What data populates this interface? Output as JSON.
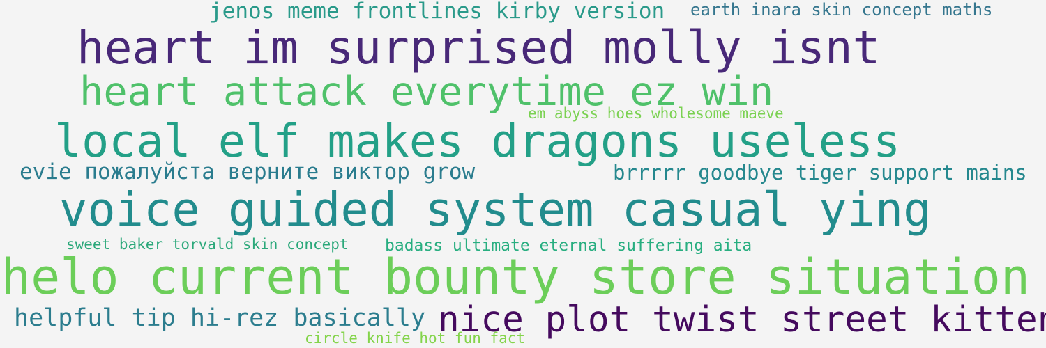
{
  "word_cloud": {
    "phrases": [
      {
        "text": "jenos meme frontlines kirby version",
        "color": "#2a9a8a"
      },
      {
        "text": "earth inara skin concept maths",
        "color": "#35768e"
      },
      {
        "text": "heart im surprised molly isnt",
        "color": "#482878"
      },
      {
        "text": "heart attack everytime ez win",
        "color": "#4fc16a"
      },
      {
        "text": "em abyss hoes wholesome maeve",
        "color": "#7ad151"
      },
      {
        "text": "local elf makes dragons useless",
        "color": "#23a087"
      },
      {
        "text": "evie пожалуйста верните виктор grow",
        "color": "#2a7c8e"
      },
      {
        "text": "brrrrr goodbye tiger support mains",
        "color": "#25888e"
      },
      {
        "text": "voice guided system casual ying",
        "color": "#228c8d"
      },
      {
        "text": "sweet baker torvald skin concept",
        "color": "#2ba87a"
      },
      {
        "text": "badass ultimate eternal suffering aita",
        "color": "#28ae80"
      },
      {
        "text": "helo current bounty store situation",
        "color": "#6cce59"
      },
      {
        "text": "helpful tip hi-rez basically",
        "color": "#2c7d8e"
      },
      {
        "text": "nice plot twist street kitten",
        "color": "#450a5e"
      },
      {
        "text": "circle knife hot fun fact",
        "color": "#84d44b"
      }
    ]
  }
}
